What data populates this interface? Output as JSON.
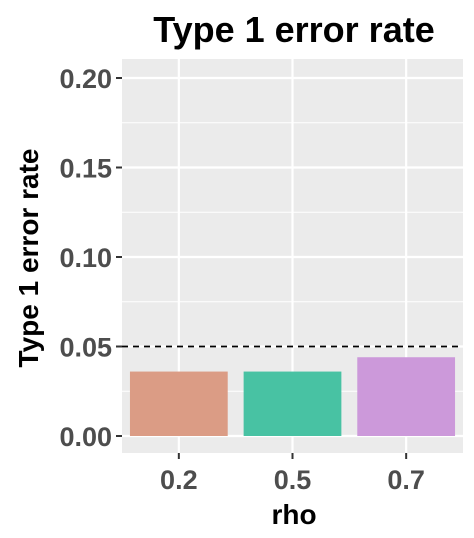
{
  "chart_data": {
    "type": "bar",
    "title": "Type 1 error rate",
    "xlabel": "rho",
    "ylabel": "Type 1 error rate",
    "categories": [
      "0.2",
      "0.5",
      "0.7"
    ],
    "values": [
      0.036,
      0.036,
      0.044
    ],
    "colors": [
      "#DB9C85",
      "#48C2A3",
      "#CC99DA"
    ],
    "ylim": [
      0,
      0.2
    ],
    "yticks": [
      0.0,
      0.05,
      0.1,
      0.15,
      0.2
    ],
    "ytick_labels": [
      "0.00",
      "0.05",
      "0.10",
      "0.15",
      "0.20"
    ],
    "reference_line": {
      "y": 0.05,
      "style": "dashed",
      "color": "#000000"
    },
    "grid": true,
    "panel_background": "#EBEBEB",
    "gridline_color": "#FFFFFF",
    "legend": "none"
  }
}
